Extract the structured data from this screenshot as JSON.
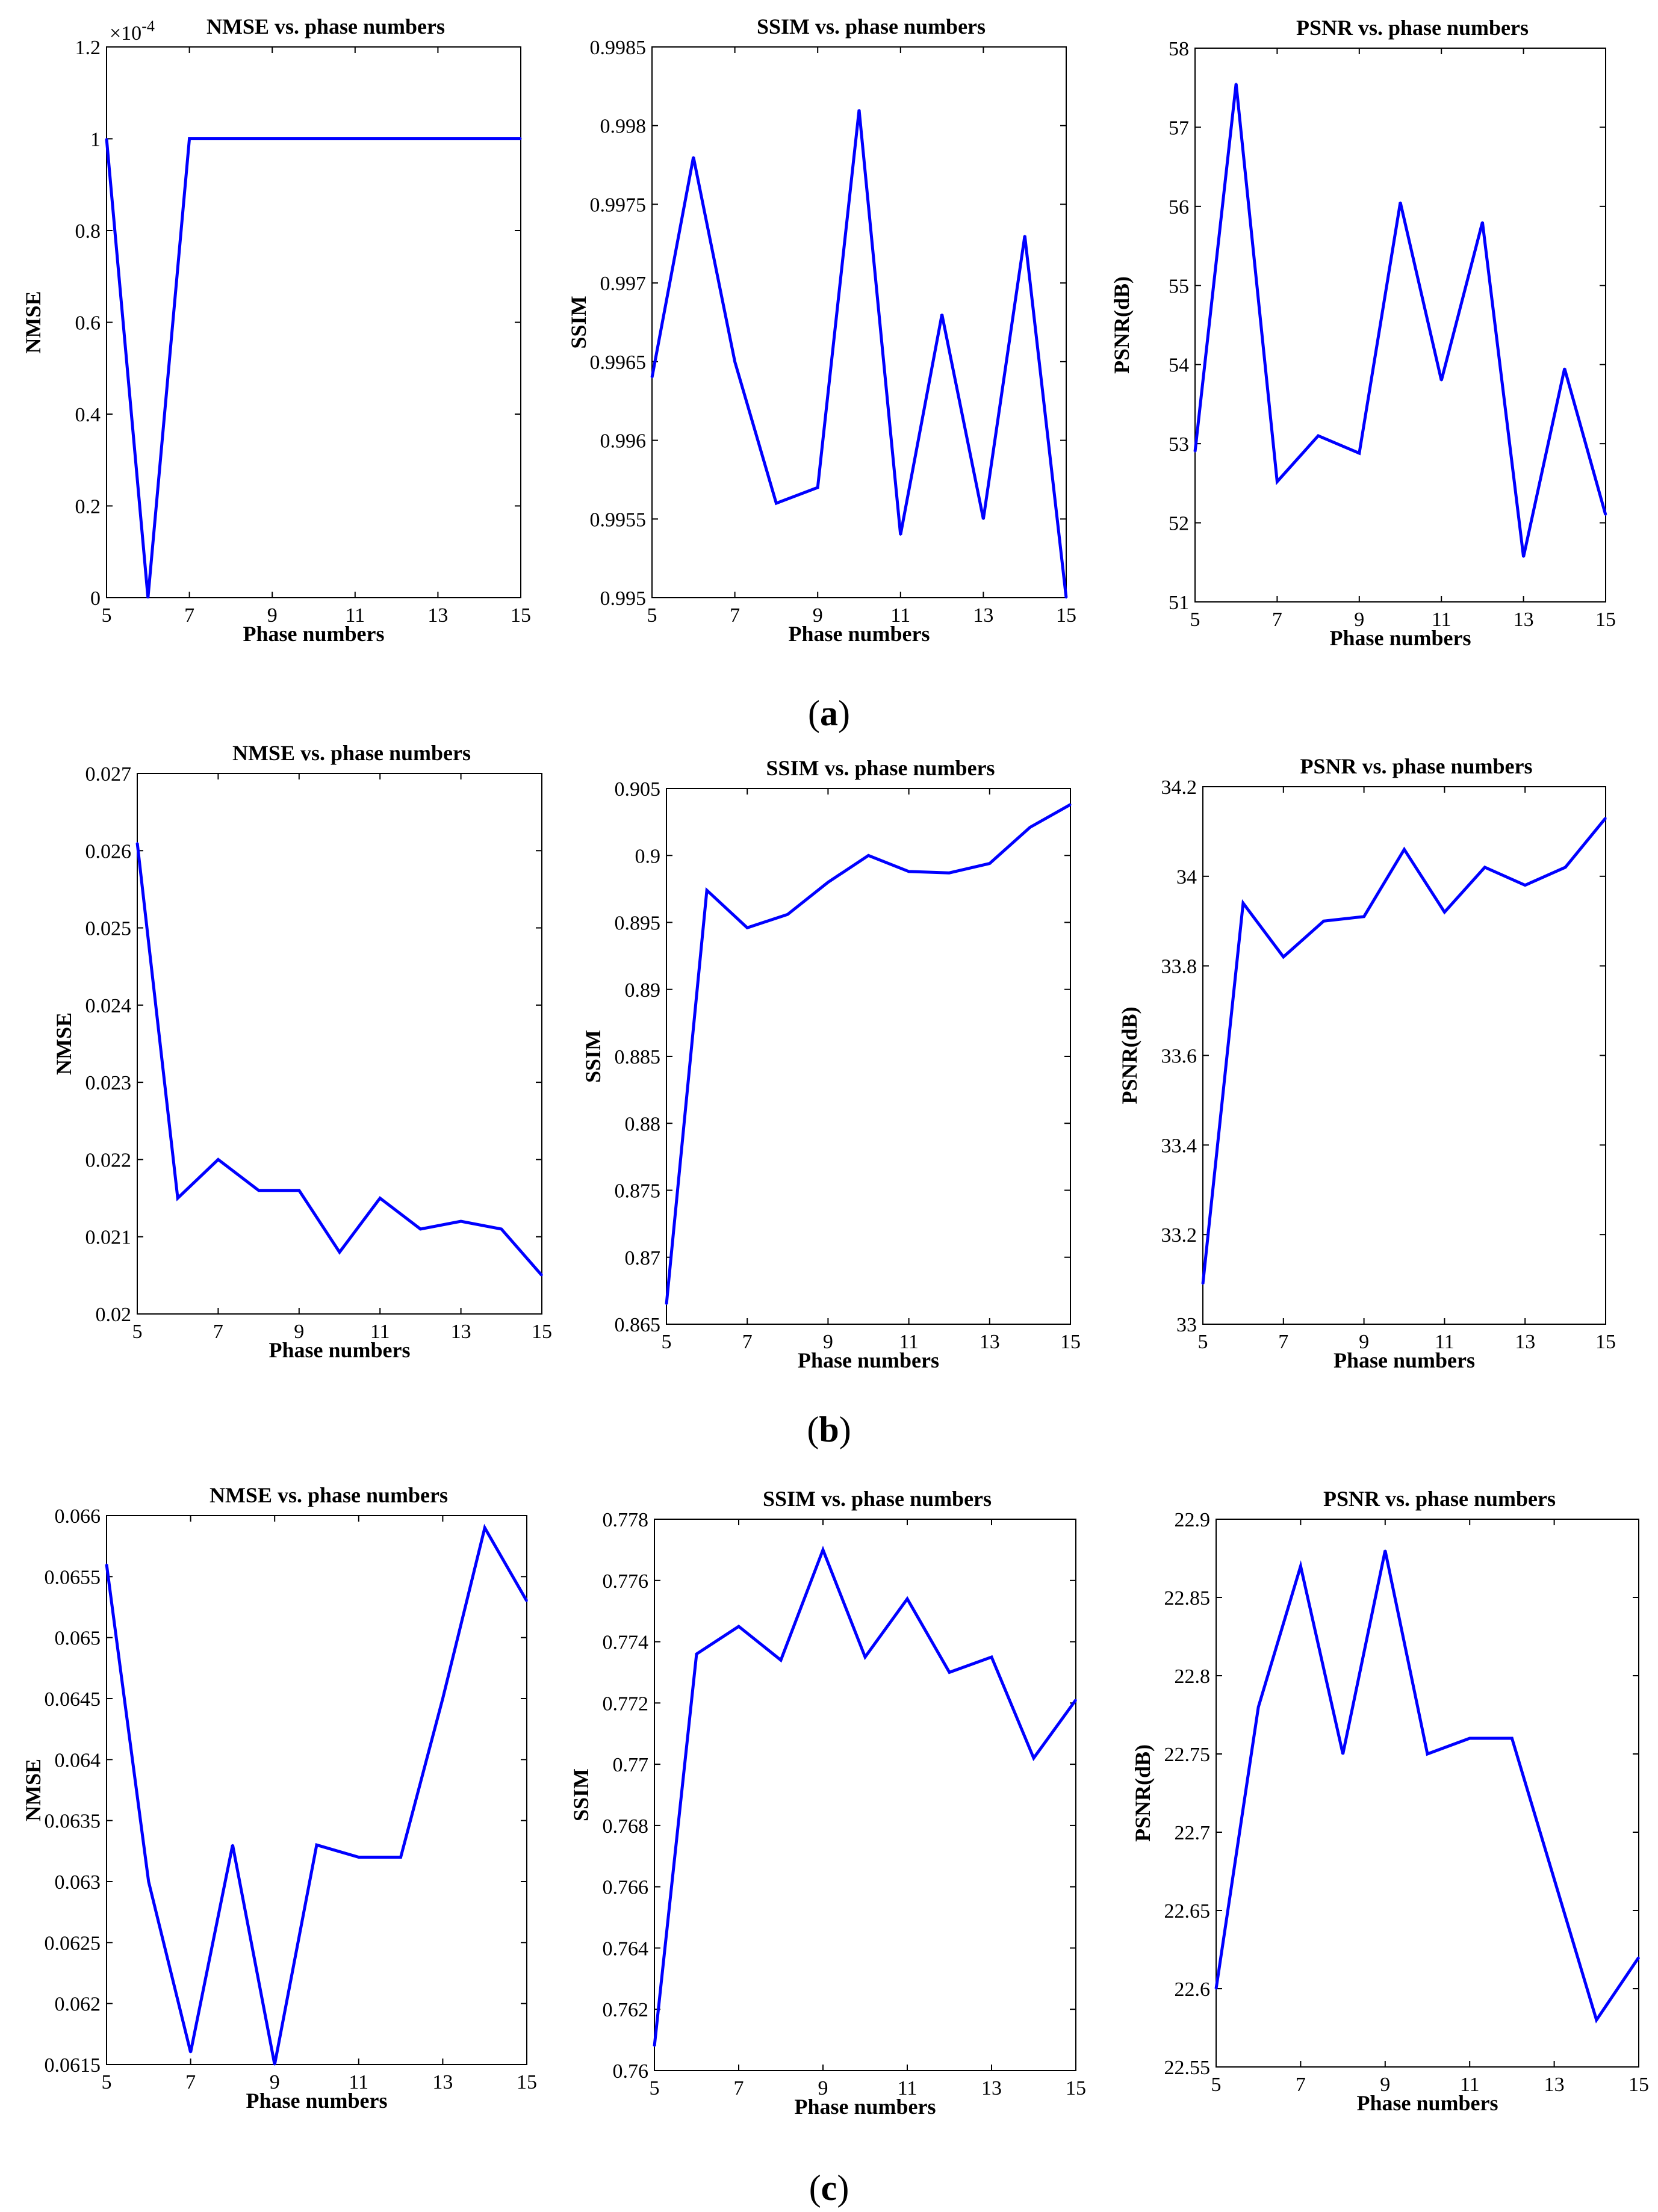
{
  "figure": {
    "panel_labels": [
      {
        "open": "(",
        "letter": "a",
        "close": ")"
      },
      {
        "open": "(",
        "letter": "b",
        "close": ")"
      },
      {
        "open": "(",
        "letter": "c",
        "close": ")"
      }
    ]
  },
  "styles": {
    "line_color": "#0000ff",
    "axis_color": "#000000",
    "background": "#ffffff"
  },
  "chart_data": [
    {
      "type": "line",
      "row": 0,
      "col": 0,
      "title": "NMSE vs. phase numbers",
      "xlabel": "Phase numbers",
      "ylabel": "NMSE",
      "x": [
        5,
        6,
        7,
        8,
        9,
        10,
        11,
        12,
        13,
        14,
        15
      ],
      "values": [
        1.0,
        0,
        1.0,
        1.0,
        1.0,
        1.0,
        1.0,
        1.0,
        1.0,
        1.0,
        1.0
      ],
      "xlim": [
        5,
        15
      ],
      "ylim": [
        0,
        1.2
      ],
      "xticks": [
        "5",
        "7",
        "9",
        "11",
        "13",
        "15"
      ],
      "yticks": [
        "0",
        "0.2",
        "0.4",
        "0.6",
        "0.8",
        "1",
        "1.2"
      ],
      "exponent": "×10",
      "exponent_power": "-4"
    },
    {
      "type": "line",
      "row": 0,
      "col": 1,
      "title": "SSIM vs. phase numbers",
      "xlabel": "Phase numbers",
      "ylabel": "SSIM",
      "x": [
        5,
        6,
        7,
        8,
        9,
        10,
        11,
        12,
        13,
        14,
        15
      ],
      "values": [
        0.9964,
        0.9978,
        0.9965,
        0.9956,
        0.9957,
        0.9981,
        0.9954,
        0.9968,
        0.9955,
        0.9973,
        0.995
      ],
      "xlim": [
        5,
        15
      ],
      "ylim": [
        0.995,
        0.9985
      ],
      "xticks": [
        "5",
        "7",
        "9",
        "11",
        "13",
        "15"
      ],
      "yticks": [
        "0.995",
        "0.9955",
        "0.996",
        "0.9965",
        "0.997",
        "0.9975",
        "0.998",
        "0.9985"
      ]
    },
    {
      "type": "line",
      "row": 0,
      "col": 2,
      "title": "PSNR vs. phase numbers",
      "xlabel": "Phase numbers",
      "ylabel": "PSNR(dB)",
      "x": [
        5,
        6,
        7,
        8,
        9,
        10,
        11,
        12,
        13,
        14,
        15
      ],
      "values": [
        52.9,
        57.55,
        52.52,
        53.1,
        52.88,
        56.05,
        53.8,
        55.8,
        51.57,
        53.95,
        52.1
      ],
      "xlim": [
        5,
        15
      ],
      "ylim": [
        51,
        58
      ],
      "xticks": [
        "5",
        "7",
        "9",
        "11",
        "13",
        "15"
      ],
      "yticks": [
        "51",
        "52",
        "53",
        "54",
        "55",
        "56",
        "57",
        "58"
      ]
    },
    {
      "type": "line",
      "row": 1,
      "col": 0,
      "title": "NMSE vs. phase numbers",
      "xlabel": "Phase numbers",
      "ylabel": "NMSE",
      "x": [
        5,
        6,
        7,
        8,
        9,
        10,
        11,
        12,
        13,
        14,
        15
      ],
      "values": [
        0.0261,
        0.0215,
        0.022,
        0.0216,
        0.0216,
        0.0208,
        0.0215,
        0.0211,
        0.0212,
        0.0211,
        0.0205
      ],
      "xlim": [
        5,
        15
      ],
      "ylim": [
        0.02,
        0.027
      ],
      "xticks": [
        "5",
        "7",
        "9",
        "11",
        "13",
        "15"
      ],
      "yticks": [
        "0.02",
        "0.021",
        "0.022",
        "0.023",
        "0.024",
        "0.025",
        "0.026",
        "0.027"
      ]
    },
    {
      "type": "line",
      "row": 1,
      "col": 1,
      "title": "SSIM vs. phase numbers",
      "xlabel": "Phase numbers",
      "ylabel": "SSIM",
      "x": [
        5,
        6,
        7,
        8,
        9,
        10,
        11,
        12,
        13,
        14,
        15
      ],
      "values": [
        0.8665,
        0.8974,
        0.8946,
        0.8956,
        0.898,
        0.9,
        0.8988,
        0.8987,
        0.8994,
        0.9021,
        0.9038
      ],
      "xlim": [
        5,
        15
      ],
      "ylim": [
        0.865,
        0.905
      ],
      "xticks": [
        "5",
        "7",
        "9",
        "11",
        "13",
        "15"
      ],
      "yticks": [
        "0.865",
        "0.87",
        "0.875",
        "0.88",
        "0.885",
        "0.89",
        "0.895",
        "0.9",
        "0.905"
      ]
    },
    {
      "type": "line",
      "row": 1,
      "col": 2,
      "title": "PSNR vs. phase numbers",
      "xlabel": "Phase numbers",
      "ylabel": "PSNR(dB)",
      "x": [
        5,
        6,
        7,
        8,
        9,
        10,
        11,
        12,
        13,
        14,
        15
      ],
      "values": [
        33.09,
        33.94,
        33.82,
        33.9,
        33.91,
        34.06,
        33.92,
        34.02,
        33.98,
        34.02,
        34.13
      ],
      "xlim": [
        5,
        15
      ],
      "ylim": [
        33,
        34.2
      ],
      "xticks": [
        "5",
        "7",
        "9",
        "11",
        "13",
        "15"
      ],
      "yticks": [
        "33",
        "33.2",
        "33.4",
        "33.6",
        "33.8",
        "34",
        "34.2"
      ]
    },
    {
      "type": "line",
      "row": 2,
      "col": 0,
      "title": "NMSE vs. phase numbers",
      "xlabel": "Phase numbers",
      "ylabel": "NMSE",
      "x": [
        5,
        6,
        7,
        8,
        9,
        10,
        11,
        12,
        13,
        14,
        15
      ],
      "values": [
        0.0656,
        0.063,
        0.0616,
        0.0633,
        0.0615,
        0.0633,
        0.0632,
        0.0632,
        0.0645,
        0.0659,
        0.0653
      ],
      "xlim": [
        5,
        15
      ],
      "ylim": [
        0.0615,
        0.066
      ],
      "xticks": [
        "5",
        "7",
        "9",
        "11",
        "13",
        "15"
      ],
      "yticks": [
        "0.0615",
        "0.062",
        "0.0625",
        "0.063",
        "0.0635",
        "0.064",
        "0.0645",
        "0.065",
        "0.0655",
        "0.066"
      ]
    },
    {
      "type": "line",
      "row": 2,
      "col": 1,
      "title": "SSIM vs. phase numbers",
      "xlabel": "Phase numbers",
      "ylabel": "SSIM",
      "x": [
        5,
        6,
        7,
        8,
        9,
        10,
        11,
        12,
        13,
        14,
        15
      ],
      "values": [
        0.7608,
        0.7736,
        0.7745,
        0.7734,
        0.777,
        0.7735,
        0.7754,
        0.773,
        0.7735,
        0.7702,
        0.7721
      ],
      "xlim": [
        5,
        15
      ],
      "ylim": [
        0.76,
        0.778
      ],
      "xticks": [
        "5",
        "7",
        "9",
        "11",
        "13",
        "15"
      ],
      "yticks": [
        "0.76",
        "0.762",
        "0.764",
        "0.766",
        "0.768",
        "0.77",
        "0.772",
        "0.774",
        "0.776",
        "0.778"
      ]
    },
    {
      "type": "line",
      "row": 2,
      "col": 2,
      "title": "PSNR vs. phase numbers",
      "xlabel": "Phase numbers",
      "ylabel": "PSNR(dB)",
      "x": [
        5,
        6,
        7,
        8,
        9,
        10,
        11,
        12,
        13,
        14,
        15
      ],
      "values": [
        22.6,
        22.78,
        22.87,
        22.75,
        22.88,
        22.75,
        22.76,
        22.76,
        22.67,
        22.58,
        22.62
      ],
      "xlim": [
        5,
        15
      ],
      "ylim": [
        22.55,
        22.9
      ],
      "xticks": [
        "5",
        "7",
        "9",
        "11",
        "13",
        "15"
      ],
      "yticks": [
        "22.55",
        "22.6",
        "22.65",
        "22.7",
        "22.75",
        "22.8",
        "22.85",
        "22.9"
      ]
    }
  ]
}
